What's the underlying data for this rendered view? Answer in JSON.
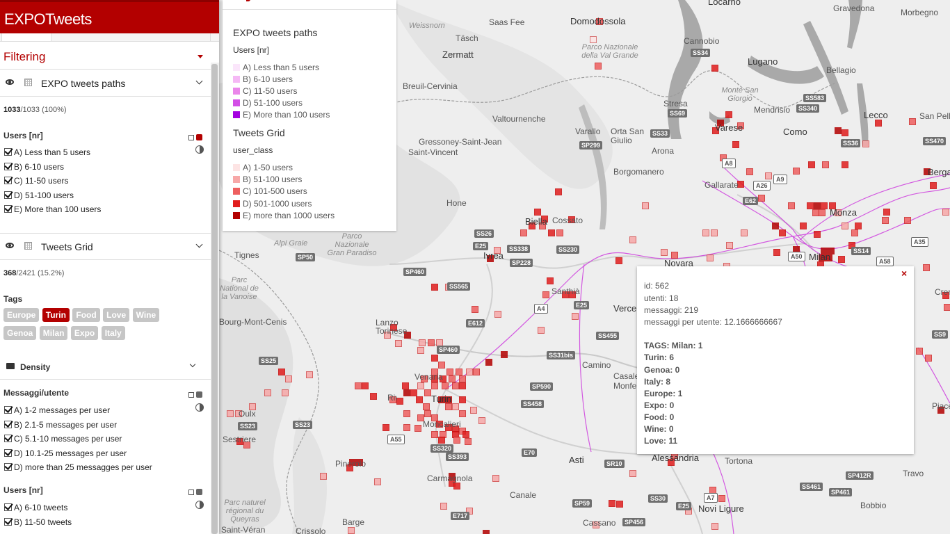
{
  "app": {
    "title": "EXPOTweets"
  },
  "filter": {
    "label": "Filtering"
  },
  "layers": [
    {
      "name": "EXPO tweets paths",
      "count_bold": "1033",
      "count_rest": "/1033 (100%)",
      "section_label": "Users [nr]",
      "accent": "#b30000",
      "classes": [
        "A) Less than 5 users",
        "B) 6-10 users",
        "C) 11-50 users",
        "D) 51-100 users",
        "E) More than 100 users"
      ]
    },
    {
      "name": "Tweets Grid",
      "count_bold": "368",
      "count_rest": "/2421 (15.2%)",
      "tags_label": "Tags",
      "tags": [
        "Europe",
        "Turin",
        "Food",
        "Love",
        "Wine",
        "Genoa",
        "Milan",
        "Expo",
        "Italy"
      ],
      "active_tag": "Turin"
    }
  ],
  "density": {
    "name": "Density",
    "section1": "Messaggi/utente",
    "classes1": [
      "A) 1-2 messages per user",
      "B) 2.1-5 messages per user",
      "C) 5.1-10 messages per user",
      "D) 10.1-25 messages per user",
      "D) more than 25 messagges per user"
    ],
    "section2": "Users [nr]",
    "classes2": [
      "A) 6-10 tweets",
      "B) 11-50 tweets"
    ],
    "accent": "#666666"
  },
  "legend": {
    "title1": "EXPO tweets paths",
    "sub1": "Users [nr]",
    "items1": [
      {
        "label": "A) Less than 5 users",
        "color": "#fbe6fb"
      },
      {
        "label": "B) 6-10 users",
        "color": "#f5b8f5"
      },
      {
        "label": "C) 11-50 users",
        "color": "#ea86ea"
      },
      {
        "label": "D) 51-100 users",
        "color": "#d34fe6"
      },
      {
        "label": "E) More than 100 users",
        "color": "#a400e0"
      }
    ],
    "title2": "Tweets Grid",
    "sub2": "user_class",
    "items2": [
      {
        "label": "A) 1-50 users",
        "color": "#fde4e4"
      },
      {
        "label": "B) 51-100 users",
        "color": "#f7a8a8"
      },
      {
        "label": "C) 101-500 users",
        "color": "#ee5f5f"
      },
      {
        "label": "D) 501-1000 users",
        "color": "#e11d1d"
      },
      {
        "label": "E) more than 1000 users",
        "color": "#b30000"
      }
    ]
  },
  "popup": {
    "close": "×",
    "lines": [
      "id: 562",
      "utenti: 18",
      "messaggi: 219",
      "messaggi per utente: 12.1666666667"
    ],
    "tag_lines": [
      "TAGS: Milan: 1",
      "Turin: 6",
      "Genoa: 0",
      "Italy: 8",
      "Europe: 1",
      "Expo: 0",
      "Food: 0",
      "Wine: 0",
      "Love: 11"
    ]
  },
  "map": {
    "places": [
      {
        "t": "Domodossola",
        "cls": "big"
      },
      {
        "t": "Locarno",
        "cls": "big"
      },
      {
        "t": "Gravedona",
        "cls": ""
      },
      {
        "t": "Morbegno",
        "cls": ""
      },
      {
        "t": "Weissnorn",
        "cls": "area"
      },
      {
        "t": "Saas Fee",
        "cls": ""
      },
      {
        "t": "Täsch",
        "cls": ""
      },
      {
        "t": "Zermatt",
        "cls": "big"
      },
      {
        "t": "Cannobio",
        "cls": ""
      },
      {
        "t": "Lugano",
        "cls": "big"
      },
      {
        "t": "Bellagio",
        "cls": ""
      },
      {
        "t": "Breuil-Cervinia",
        "cls": ""
      },
      {
        "t": "Valtournenche",
        "cls": ""
      },
      {
        "t": "Mendrisio",
        "cls": ""
      },
      {
        "t": "Lecco",
        "cls": "big"
      },
      {
        "t": "San Pelle",
        "cls": ""
      },
      {
        "t": "Stresa",
        "cls": ""
      },
      {
        "t": "Varese",
        "cls": "big"
      },
      {
        "t": "Como",
        "cls": "big"
      },
      {
        "t": "Gressoney-Saint-Jean",
        "cls": ""
      },
      {
        "t": "Varallo",
        "cls": ""
      },
      {
        "t": "Orta San Giulio",
        "cls": ""
      },
      {
        "t": "Arona",
        "cls": ""
      },
      {
        "t": "Saint-Vincent",
        "cls": ""
      },
      {
        "t": "Borgomanero",
        "cls": ""
      },
      {
        "t": "Bergamo",
        "cls": "big"
      },
      {
        "t": "Gallarate",
        "cls": ""
      },
      {
        "t": "Monza",
        "cls": "big"
      },
      {
        "t": "Hone",
        "cls": ""
      },
      {
        "t": "Biella",
        "cls": "big"
      },
      {
        "t": "Cossato",
        "cls": ""
      },
      {
        "t": "Tignes",
        "cls": ""
      },
      {
        "t": "Ivrea",
        "cls": "big"
      },
      {
        "t": "Novara",
        "cls": "big"
      },
      {
        "t": "Milan",
        "cls": "big"
      },
      {
        "t": "Santhià",
        "cls": ""
      },
      {
        "t": "Vercelli",
        "cls": "big"
      },
      {
        "t": "Lanzo Torinese",
        "cls": ""
      },
      {
        "t": "Bourg-Mont-Cenis",
        "cls": ""
      },
      {
        "t": "Venaria",
        "cls": ""
      },
      {
        "t": "Camino",
        "cls": ""
      },
      {
        "t": "Casale Monferrato",
        "cls": ""
      },
      {
        "t": "Rivoli",
        "cls": ""
      },
      {
        "t": "Turin",
        "cls": "big"
      },
      {
        "t": "Moncalieri",
        "cls": ""
      },
      {
        "t": "Oulx",
        "cls": ""
      },
      {
        "t": "Sestriere",
        "cls": ""
      },
      {
        "t": "Pinerolo",
        "cls": ""
      },
      {
        "t": "Carmagnola",
        "cls": ""
      },
      {
        "t": "Asti",
        "cls": "big"
      },
      {
        "t": "Alessandria",
        "cls": "big"
      },
      {
        "t": "Tortona",
        "cls": ""
      },
      {
        "t": "Canale",
        "cls": ""
      },
      {
        "t": "Novi Ligure",
        "cls": "big"
      },
      {
        "t": "Bobbio",
        "cls": ""
      },
      {
        "t": "Travo",
        "cls": ""
      },
      {
        "t": "Cassano",
        "cls": ""
      },
      {
        "t": "Crissolo",
        "cls": ""
      },
      {
        "t": "Saint-Véran",
        "cls": ""
      },
      {
        "t": "Barge",
        "cls": ""
      },
      {
        "t": "Crema",
        "cls": ""
      },
      {
        "t": "Piacenza",
        "cls": ""
      }
    ],
    "areas": [
      "Parco Nazionale della Val Grande",
      "Monte San Giorgio",
      "Parco Nazionale Gran Paradiso",
      "Parc National de la Vanoise",
      "Parc naturel régional du Queyras",
      "Alpi Graie"
    ],
    "roads": [
      "SS34",
      "SS583",
      "SS340",
      "SS69",
      "SS33",
      "SS36",
      "SS470",
      "SP299",
      "A8",
      "A26",
      "A9",
      "E62",
      "SS26",
      "E25",
      "SS338",
      "SS230",
      "SP50",
      "SP228",
      "A4",
      "E25",
      "A50",
      "SS14",
      "A58",
      "A35",
      "SP460",
      "SS565",
      "E612",
      "SS455",
      "SS25",
      "SP460",
      "A55",
      "SS31bis",
      "SP590",
      "SS458",
      "SS23",
      "SS23",
      "SS320",
      "SS393",
      "E70",
      "SR10",
      "SP412R",
      "SS461",
      "SP461",
      "SS30",
      "A7",
      "E25",
      "SP59",
      "E717",
      "SP456",
      "SS9"
    ]
  }
}
